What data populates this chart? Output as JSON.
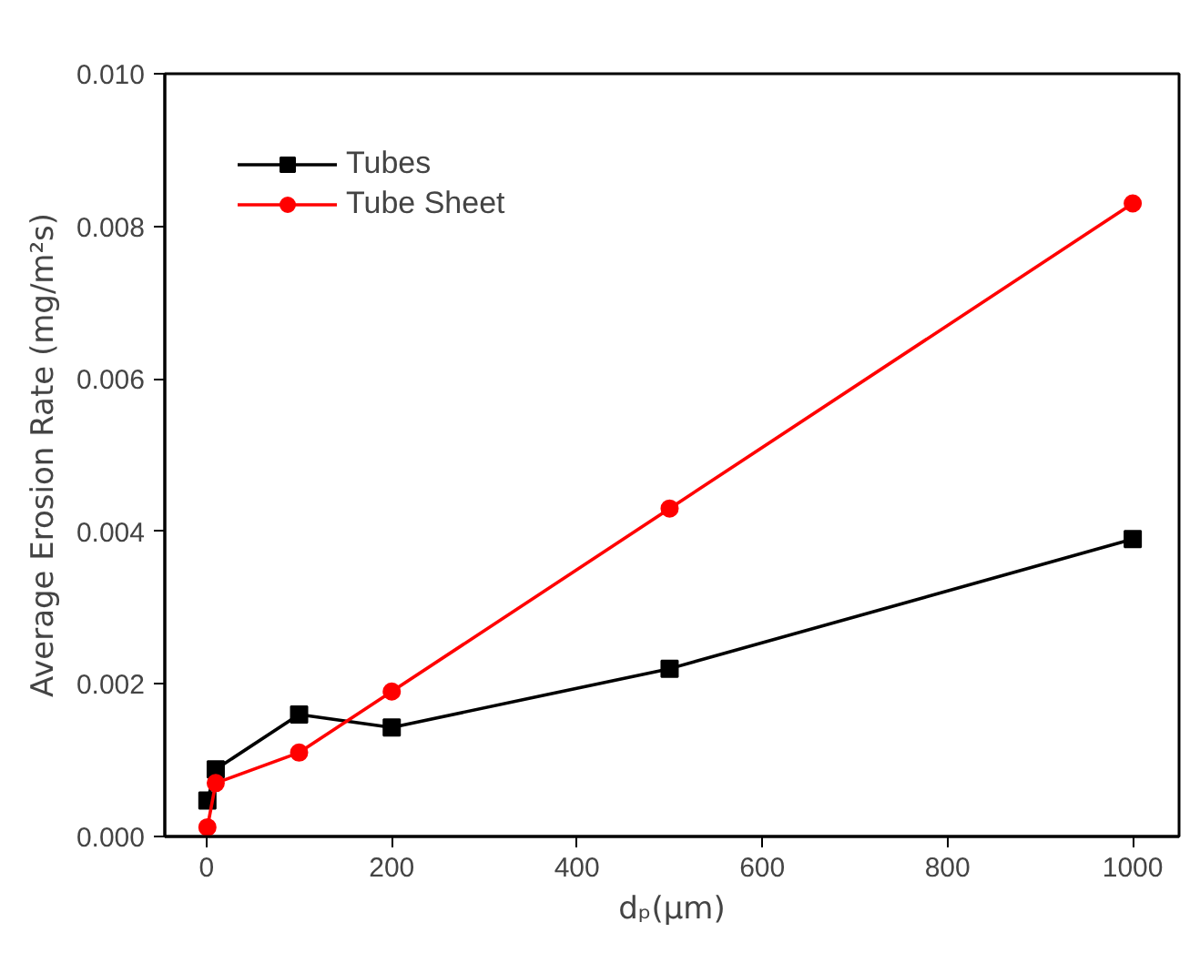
{
  "chart_data": {
    "type": "line",
    "xlabel": "dₚ(μm)",
    "ylabel": "Average Erosion Rate (mg/m²s)",
    "x": [
      1,
      10,
      100,
      200,
      500,
      1000
    ],
    "series": [
      {
        "name": "Tubes",
        "color": "#000000",
        "marker": "square",
        "values": [
          0.00047,
          0.00088,
          0.0016,
          0.00143,
          0.0022,
          0.0039
        ]
      },
      {
        "name": "Tube Sheet",
        "color": "#ff0000",
        "marker": "circle",
        "values": [
          0.00012,
          0.0007,
          0.0011,
          0.0019,
          0.0043,
          0.0083
        ]
      }
    ],
    "xlim": [
      -45,
      1050
    ],
    "ylim": [
      0,
      0.01
    ],
    "xticks": [
      0,
      200,
      400,
      600,
      800,
      1000
    ],
    "yticks": [
      {
        "value": 0,
        "label": "0.000"
      },
      {
        "value": 0.002,
        "label": "0.002"
      },
      {
        "value": 0.004,
        "label": "0.004"
      },
      {
        "value": 0.006,
        "label": "0.006"
      },
      {
        "value": 0.008,
        "label": "0.008"
      },
      {
        "value": 0.01,
        "label": "0.010"
      }
    ],
    "grid": false,
    "legend": "top left",
    "line_style": "solid"
  }
}
